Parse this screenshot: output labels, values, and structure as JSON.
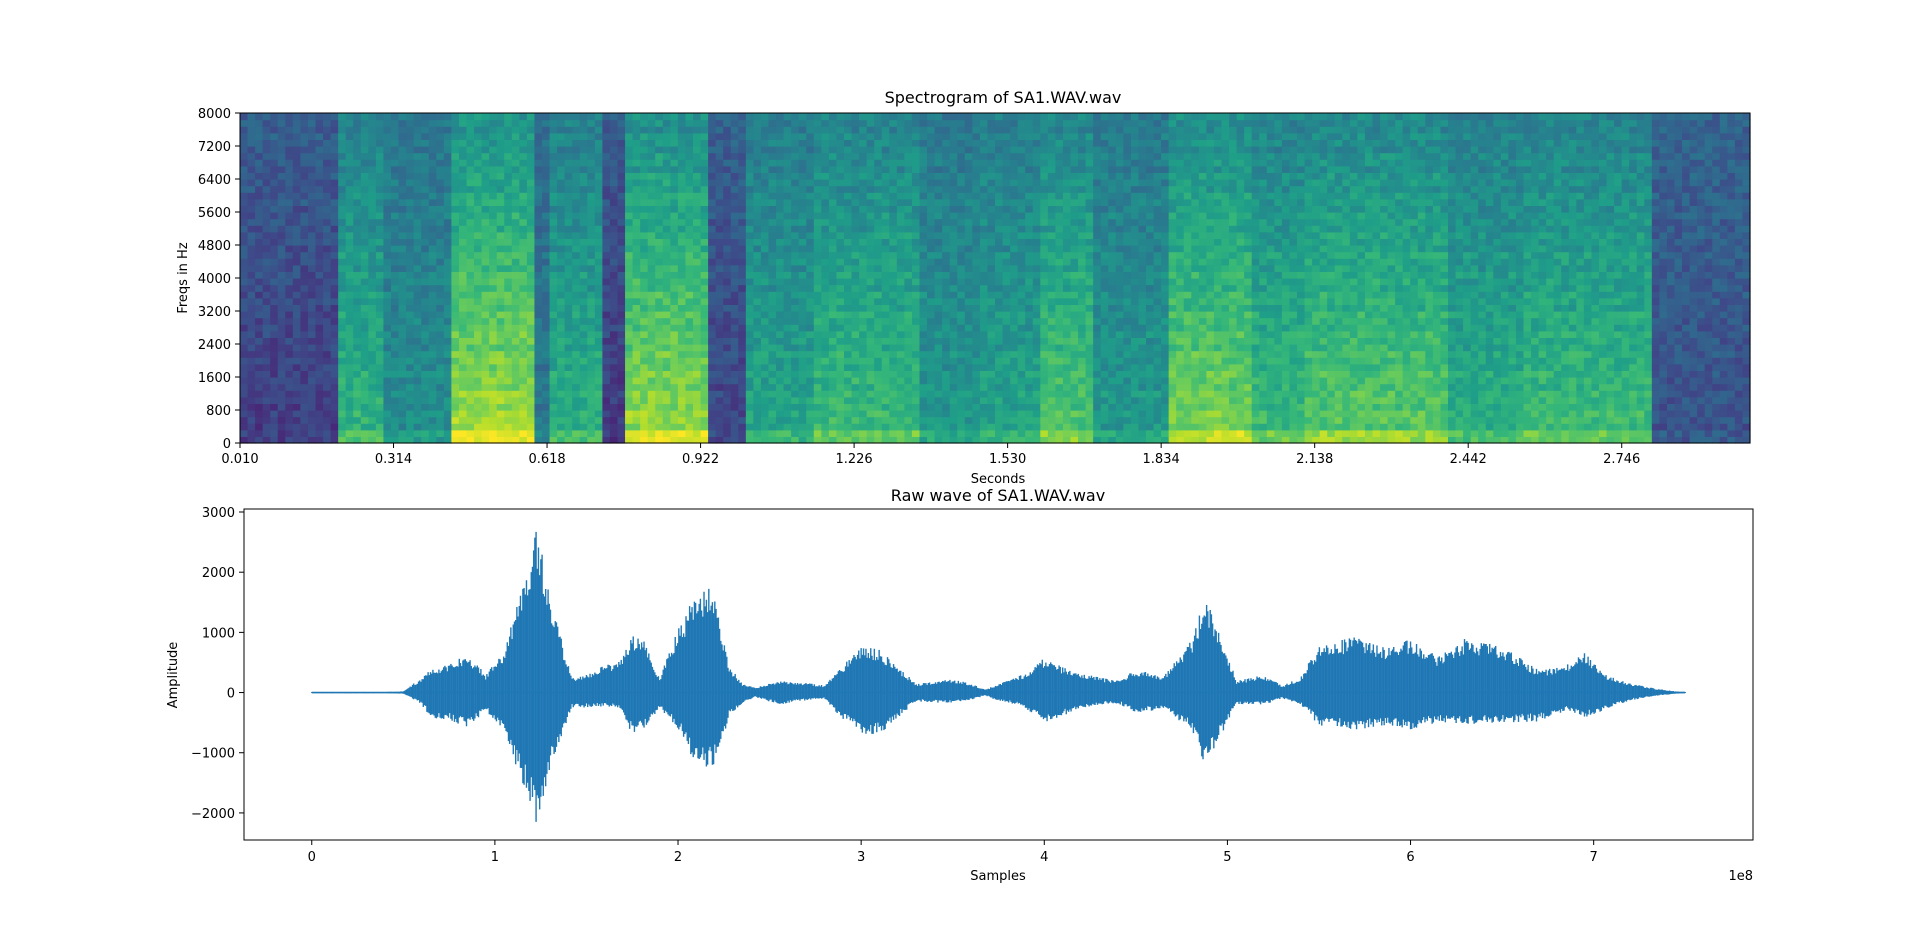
{
  "figure": {
    "background": "#ffffff"
  },
  "chart_data": [
    {
      "type": "heatmap",
      "title": "Spectrogram of SA1.WAV.wav",
      "xlabel": "Seconds",
      "ylabel": "Freqs in Hz",
      "colormap": "viridis",
      "xlim": [
        0.01,
        3.0
      ],
      "ylim": [
        0,
        8000
      ],
      "xticks": [
        0.01,
        0.314,
        0.618,
        0.922,
        1.226,
        1.53,
        1.834,
        2.138,
        2.442,
        2.746
      ],
      "xtick_labels": [
        "0.010",
        "0.314",
        "0.618",
        "0.922",
        "1.226",
        "1.530",
        "1.834",
        "2.138",
        "2.442",
        "2.746"
      ],
      "yticks": [
        0,
        800,
        1600,
        2400,
        3200,
        4000,
        4800,
        5600,
        6400,
        7200,
        8000
      ],
      "ytick_labels": [
        "0",
        "800",
        "1600",
        "2400",
        "3200",
        "4000",
        "4800",
        "5600",
        "6400",
        "7200",
        "8000"
      ],
      "segments": [
        {
          "start": 0.01,
          "end": 0.21,
          "level": 0.12
        },
        {
          "start": 0.21,
          "end": 0.29,
          "level": 0.62
        },
        {
          "start": 0.29,
          "end": 0.43,
          "level": 0.45
        },
        {
          "start": 0.43,
          "end": 0.6,
          "level": 0.85
        },
        {
          "start": 0.6,
          "end": 0.63,
          "level": 0.35
        },
        {
          "start": 0.63,
          "end": 0.73,
          "level": 0.6
        },
        {
          "start": 0.73,
          "end": 0.77,
          "level": 0.1
        },
        {
          "start": 0.77,
          "end": 0.93,
          "level": 0.82
        },
        {
          "start": 0.93,
          "end": 1.01,
          "level": 0.15
        },
        {
          "start": 1.01,
          "end": 1.15,
          "level": 0.55
        },
        {
          "start": 1.15,
          "end": 1.36,
          "level": 0.65
        },
        {
          "start": 1.36,
          "end": 1.48,
          "level": 0.5
        },
        {
          "start": 1.48,
          "end": 1.6,
          "level": 0.55
        },
        {
          "start": 1.6,
          "end": 1.7,
          "level": 0.7
        },
        {
          "start": 1.7,
          "end": 1.85,
          "level": 0.5
        },
        {
          "start": 1.85,
          "end": 2.02,
          "level": 0.78
        },
        {
          "start": 2.02,
          "end": 2.12,
          "level": 0.65
        },
        {
          "start": 2.12,
          "end": 2.4,
          "level": 0.72
        },
        {
          "start": 2.4,
          "end": 2.55,
          "level": 0.6
        },
        {
          "start": 2.55,
          "end": 2.8,
          "level": 0.65
        },
        {
          "start": 2.8,
          "end": 3.0,
          "level": 0.2
        }
      ]
    },
    {
      "type": "line",
      "title": "Raw wave of SA1.WAV.wav",
      "xlabel": "Samples",
      "ylabel": "Amplitude",
      "x_offset_label": "1e8",
      "color": "#1f77b4",
      "xlim": [
        -0.37,
        7.87
      ],
      "ylim": [
        -2450,
        3050
      ],
      "xticks": [
        0,
        1,
        2,
        3,
        4,
        5,
        6,
        7
      ],
      "xtick_labels": [
        "0",
        "1",
        "2",
        "3",
        "4",
        "5",
        "6",
        "7"
      ],
      "yticks": [
        -2000,
        -1000,
        0,
        1000,
        2000,
        3000
      ],
      "ytick_labels": [
        "−2000",
        "−1000",
        "0",
        "1000",
        "2000",
        "3000"
      ],
      "envelope": {
        "x": [
          0.0,
          0.4,
          0.5,
          0.6,
          0.65,
          0.75,
          0.85,
          0.95,
          1.05,
          1.15,
          1.23,
          1.3,
          1.42,
          1.5,
          1.6,
          1.68,
          1.75,
          1.82,
          1.9,
          2.0,
          2.08,
          2.15,
          2.2,
          2.28,
          2.35,
          2.42,
          2.55,
          2.65,
          2.8,
          2.9,
          3.0,
          3.1,
          3.3,
          3.5,
          3.6,
          3.68,
          3.72,
          3.85,
          3.95,
          4.0,
          4.1,
          4.3,
          4.4,
          4.5,
          4.65,
          4.8,
          4.88,
          4.95,
          5.05,
          5.2,
          5.3,
          5.4,
          5.5,
          5.7,
          5.85,
          6.0,
          6.15,
          6.3,
          6.5,
          6.7,
          6.85,
          6.95,
          7.05,
          7.2,
          7.35,
          7.45,
          7.5
        ],
        "upper": [
          10,
          10,
          20,
          250,
          400,
          480,
          650,
          300,
          700,
          1800,
          2800,
          1600,
          250,
          300,
          460,
          520,
          950,
          850,
          250,
          1050,
          1550,
          1750,
          1700,
          450,
          150,
          80,
          200,
          180,
          120,
          450,
          780,
          720,
          150,
          220,
          150,
          50,
          110,
          250,
          440,
          580,
          420,
          250,
          200,
          380,
          280,
          850,
          1600,
          1050,
          200,
          290,
          120,
          250,
          800,
          920,
          760,
          900,
          600,
          900,
          780,
          370,
          450,
          680,
          310,
          150,
          60,
          20,
          10
        ],
        "lower": [
          -10,
          -10,
          -20,
          -200,
          -420,
          -450,
          -600,
          -300,
          -700,
          -1500,
          -2200,
          -1300,
          -250,
          -250,
          -230,
          -250,
          -700,
          -600,
          -250,
          -600,
          -1100,
          -1300,
          -1200,
          -400,
          -200,
          -80,
          -200,
          -150,
          -100,
          -450,
          -700,
          -690,
          -150,
          -180,
          -120,
          -50,
          -110,
          -200,
          -360,
          -520,
          -380,
          -200,
          -180,
          -330,
          -280,
          -600,
          -1250,
          -800,
          -200,
          -200,
          -100,
          -200,
          -550,
          -620,
          -550,
          -610,
          -500,
          -540,
          -500,
          -480,
          -300,
          -420,
          -300,
          -130,
          -50,
          -20,
          -10
        ]
      }
    }
  ]
}
